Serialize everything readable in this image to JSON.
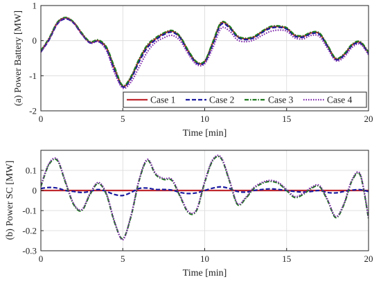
{
  "chart_data": [
    {
      "type": "line",
      "panel": "a",
      "ylabel": "(a) Power Battery [MW]",
      "xlabel": "Time [min]",
      "xlim": [
        0,
        20
      ],
      "ylim": [
        -2,
        1
      ],
      "xticks": [
        "0",
        "5",
        "10",
        "15",
        "20"
      ],
      "yticks": [
        "-2",
        "-1",
        "0",
        "1"
      ],
      "grid": true,
      "legend": "bottom-right",
      "legend_entries": [
        "Case 1",
        "Case 2",
        "Case 3",
        "Case 4"
      ],
      "series": [
        {
          "name": "Case 1",
          "color": "#c0282e",
          "style": "solid",
          "x": [
            0,
            0.5,
            1,
            1.5,
            2,
            2.5,
            3,
            3.5,
            4,
            4.5,
            5,
            5.5,
            6,
            6.5,
            7,
            7.5,
            8,
            8.5,
            9,
            9.5,
            10,
            10.5,
            11,
            11.5,
            12,
            12.5,
            13,
            13.5,
            14,
            14.5,
            15,
            15.5,
            16,
            16.5,
            17,
            17.5,
            18,
            18.5,
            19,
            19.5,
            20
          ],
          "y": [
            -0.3,
            0.05,
            0.5,
            0.65,
            0.52,
            0.2,
            -0.05,
            0,
            -0.2,
            -0.8,
            -1.3,
            -1.05,
            -0.55,
            -0.15,
            0.05,
            0.2,
            0.27,
            0.1,
            -0.3,
            -0.62,
            -0.6,
            -0.05,
            0.5,
            0.4,
            0.12,
            0.05,
            0.1,
            0.25,
            0.38,
            0.4,
            0.35,
            0.15,
            0.12,
            0.22,
            0.2,
            -0.15,
            -0.52,
            -0.4,
            -0.12,
            -0.05,
            -0.35
          ]
        },
        {
          "name": "Case 2",
          "color": "#1a1aa0",
          "style": "dashed",
          "x": [
            0,
            0.5,
            1,
            1.5,
            2,
            2.5,
            3,
            3.5,
            4,
            4.5,
            5,
            5.5,
            6,
            6.5,
            7,
            7.5,
            8,
            8.5,
            9,
            9.5,
            10,
            10.5,
            11,
            11.5,
            12,
            12.5,
            13,
            13.5,
            14,
            14.5,
            15,
            15.5,
            16,
            16.5,
            17,
            17.5,
            18,
            18.5,
            19,
            19.5,
            20
          ],
          "y": [
            -0.32,
            0.02,
            0.47,
            0.62,
            0.5,
            0.18,
            -0.06,
            -0.02,
            -0.24,
            -0.85,
            -1.32,
            -1.08,
            -0.6,
            -0.2,
            0.02,
            0.17,
            0.24,
            0.08,
            -0.33,
            -0.64,
            -0.62,
            -0.1,
            0.46,
            0.37,
            0.1,
            0.03,
            0.08,
            0.23,
            0.35,
            0.38,
            0.33,
            0.13,
            0.1,
            0.2,
            0.18,
            -0.17,
            -0.54,
            -0.42,
            -0.14,
            -0.07,
            -0.37
          ]
        },
        {
          "name": "Case 3",
          "color": "#1f7a1f",
          "style": "dashdot",
          "x": [
            0,
            0.5,
            1,
            1.5,
            2,
            2.5,
            3,
            3.5,
            4,
            4.5,
            5,
            5.5,
            6,
            6.5,
            7,
            7.5,
            8,
            8.5,
            9,
            9.5,
            10,
            10.5,
            11,
            11.5,
            12,
            12.5,
            13,
            13.5,
            14,
            14.5,
            15,
            15.5,
            16,
            16.5,
            17,
            17.5,
            18,
            18.5,
            19,
            19.5,
            20
          ],
          "y": [
            -0.28,
            0.07,
            0.52,
            0.66,
            0.53,
            0.22,
            -0.03,
            0.02,
            -0.18,
            -0.76,
            -1.28,
            -1.02,
            -0.52,
            -0.12,
            0.08,
            0.22,
            0.29,
            0.12,
            -0.28,
            -0.6,
            -0.58,
            -0.03,
            0.52,
            0.42,
            0.14,
            0.07,
            0.12,
            0.27,
            0.4,
            0.42,
            0.37,
            0.17,
            0.14,
            0.24,
            0.22,
            -0.13,
            -0.5,
            -0.38,
            -0.1,
            -0.03,
            -0.33
          ]
        },
        {
          "name": "Case 4",
          "color": "#7a1fa8",
          "style": "dotted",
          "x": [
            0,
            0.5,
            1,
            1.5,
            2,
            2.5,
            3,
            3.5,
            4,
            4.5,
            5,
            5.5,
            6,
            6.5,
            7,
            7.5,
            8,
            8.5,
            9,
            9.5,
            10,
            10.5,
            11,
            11.5,
            12,
            12.5,
            13,
            13.5,
            14,
            14.5,
            15,
            15.5,
            16,
            16.5,
            17,
            17.5,
            18,
            18.5,
            19,
            19.5,
            20
          ],
          "y": [
            -0.33,
            0.03,
            0.48,
            0.63,
            0.5,
            0.18,
            -0.07,
            -0.03,
            -0.28,
            -0.92,
            -1.35,
            -1.18,
            -0.75,
            -0.32,
            -0.05,
            0.08,
            0.15,
            0.0,
            -0.38,
            -0.68,
            -0.66,
            -0.2,
            0.35,
            0.28,
            0.02,
            -0.03,
            0.02,
            0.15,
            0.26,
            0.3,
            0.27,
            0.08,
            0.05,
            0.15,
            0.12,
            -0.22,
            -0.57,
            -0.47,
            -0.19,
            -0.1,
            -0.4
          ]
        }
      ]
    },
    {
      "type": "line",
      "panel": "b",
      "ylabel": "(b) Power SC [MW]",
      "xlabel": "Time [min]",
      "xlim": [
        0,
        20
      ],
      "ylim": [
        -0.3,
        0.2
      ],
      "xticks": [
        "0",
        "5",
        "10",
        "15",
        "20"
      ],
      "yticks": [
        "-0.3",
        "-0.2",
        "-0.1",
        "0",
        "0.1"
      ],
      "grid": true,
      "series": [
        {
          "name": "Case 1",
          "color": "#c0282e",
          "style": "solid",
          "x": [
            0,
            20
          ],
          "y": [
            0,
            0
          ]
        },
        {
          "name": "Case 2",
          "color": "#1a1aa0",
          "style": "dashed",
          "x": [
            0,
            0.5,
            1,
            1.5,
            2,
            2.5,
            3,
            3.5,
            4,
            4.5,
            5,
            5.5,
            6,
            6.5,
            7,
            7.5,
            8,
            8.5,
            9,
            9.5,
            10,
            10.5,
            11,
            11.5,
            12,
            12.5,
            13,
            13.5,
            14,
            14.5,
            15,
            15.5,
            16,
            16.5,
            17,
            17.5,
            18,
            18.5,
            19,
            19.5,
            20
          ],
          "y": [
            0.01,
            0.015,
            0.012,
            0.0,
            -0.005,
            -0.01,
            -0.005,
            0.005,
            -0.005,
            -0.02,
            -0.025,
            -0.01,
            0.01,
            0.012,
            0.005,
            0.005,
            0.002,
            -0.01,
            -0.015,
            -0.012,
            0.0,
            0.012,
            0.018,
            0.01,
            -0.005,
            -0.008,
            0.0,
            0.005,
            0.008,
            0.005,
            0.0,
            -0.005,
            -0.008,
            -0.005,
            0.0,
            -0.01,
            -0.012,
            -0.005,
            0.002,
            0.004,
            -0.005
          ]
        },
        {
          "name": "Case 3",
          "color": "#1f7a1f",
          "style": "dashdot",
          "x": [
            0,
            0.5,
            1,
            1.5,
            2,
            2.5,
            3,
            3.5,
            4,
            4.5,
            5,
            5.5,
            6,
            6.5,
            7,
            7.5,
            8,
            8.5,
            9,
            9.5,
            10,
            10.5,
            11,
            11.5,
            12,
            12.5,
            13,
            13.5,
            14,
            14.5,
            15,
            15.5,
            16,
            16.5,
            17,
            17.5,
            18,
            18.5,
            19,
            19.5,
            20
          ],
          "y": [
            0.02,
            0.13,
            0.15,
            0.04,
            -0.07,
            -0.1,
            -0.02,
            0.035,
            -0.02,
            -0.16,
            -0.24,
            -0.13,
            0.05,
            0.15,
            0.08,
            0.055,
            0.05,
            -0.03,
            -0.11,
            -0.1,
            0.04,
            0.15,
            0.16,
            0.05,
            -0.07,
            -0.04,
            0.01,
            0.035,
            0.045,
            0.035,
            0.0,
            -0.035,
            -0.02,
            0.01,
            0.02,
            -0.05,
            -0.135,
            -0.07,
            0.05,
            0.075,
            -0.14
          ]
        },
        {
          "name": "Case 4",
          "color": "#7a1fa8",
          "style": "dotted",
          "x": [
            0,
            0.5,
            1,
            1.5,
            2,
            2.5,
            3,
            3.5,
            4,
            4.5,
            5,
            5.5,
            6,
            6.5,
            7,
            7.5,
            8,
            8.5,
            9,
            9.5,
            10,
            10.5,
            11,
            11.5,
            12,
            12.5,
            13,
            13.5,
            14,
            14.5,
            15,
            15.5,
            16,
            16.5,
            17,
            17.5,
            18,
            18.5,
            19,
            19.5,
            20
          ],
          "y": [
            0.025,
            0.135,
            0.155,
            0.045,
            -0.065,
            -0.095,
            -0.015,
            0.04,
            -0.015,
            -0.155,
            -0.245,
            -0.125,
            0.055,
            0.155,
            0.085,
            0.06,
            0.055,
            -0.025,
            -0.105,
            -0.095,
            0.045,
            0.155,
            0.165,
            0.055,
            -0.065,
            -0.035,
            0.015,
            0.04,
            0.05,
            0.04,
            0.005,
            -0.03,
            -0.015,
            0.015,
            0.025,
            -0.045,
            -0.13,
            -0.065,
            0.055,
            0.08,
            -0.135
          ]
        }
      ]
    }
  ]
}
